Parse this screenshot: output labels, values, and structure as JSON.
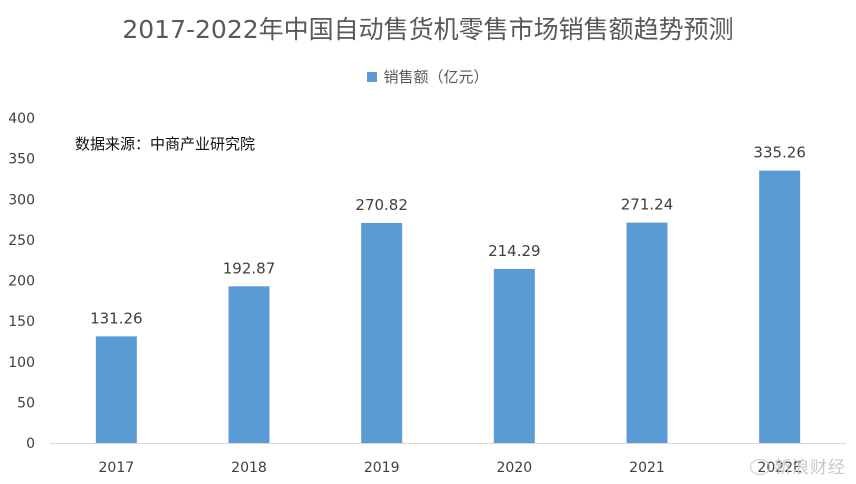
{
  "colors": {
    "bar": "#5b9bd5",
    "axis": "#d9d9d9",
    "text": "#595959"
  },
  "source_note": "数据来源：中商产业研究院",
  "watermark": "新浪财经",
  "chart_data": {
    "type": "bar",
    "title": "2017-2022年中国自动售货机零售市场销售额趋势预测",
    "xlabel": "",
    "ylabel": "",
    "categories": [
      "2017",
      "2018",
      "2019",
      "2020",
      "2021",
      "2022E"
    ],
    "series": [
      {
        "name": "销售额（亿元）",
        "values": [
          131.26,
          192.87,
          270.82,
          214.29,
          271.24,
          335.26
        ]
      }
    ],
    "ylim": [
      0,
      400
    ],
    "yticks": [
      0,
      50,
      100,
      150,
      200,
      250,
      300,
      350,
      400
    ],
    "grid": false,
    "legend_position": "top"
  }
}
